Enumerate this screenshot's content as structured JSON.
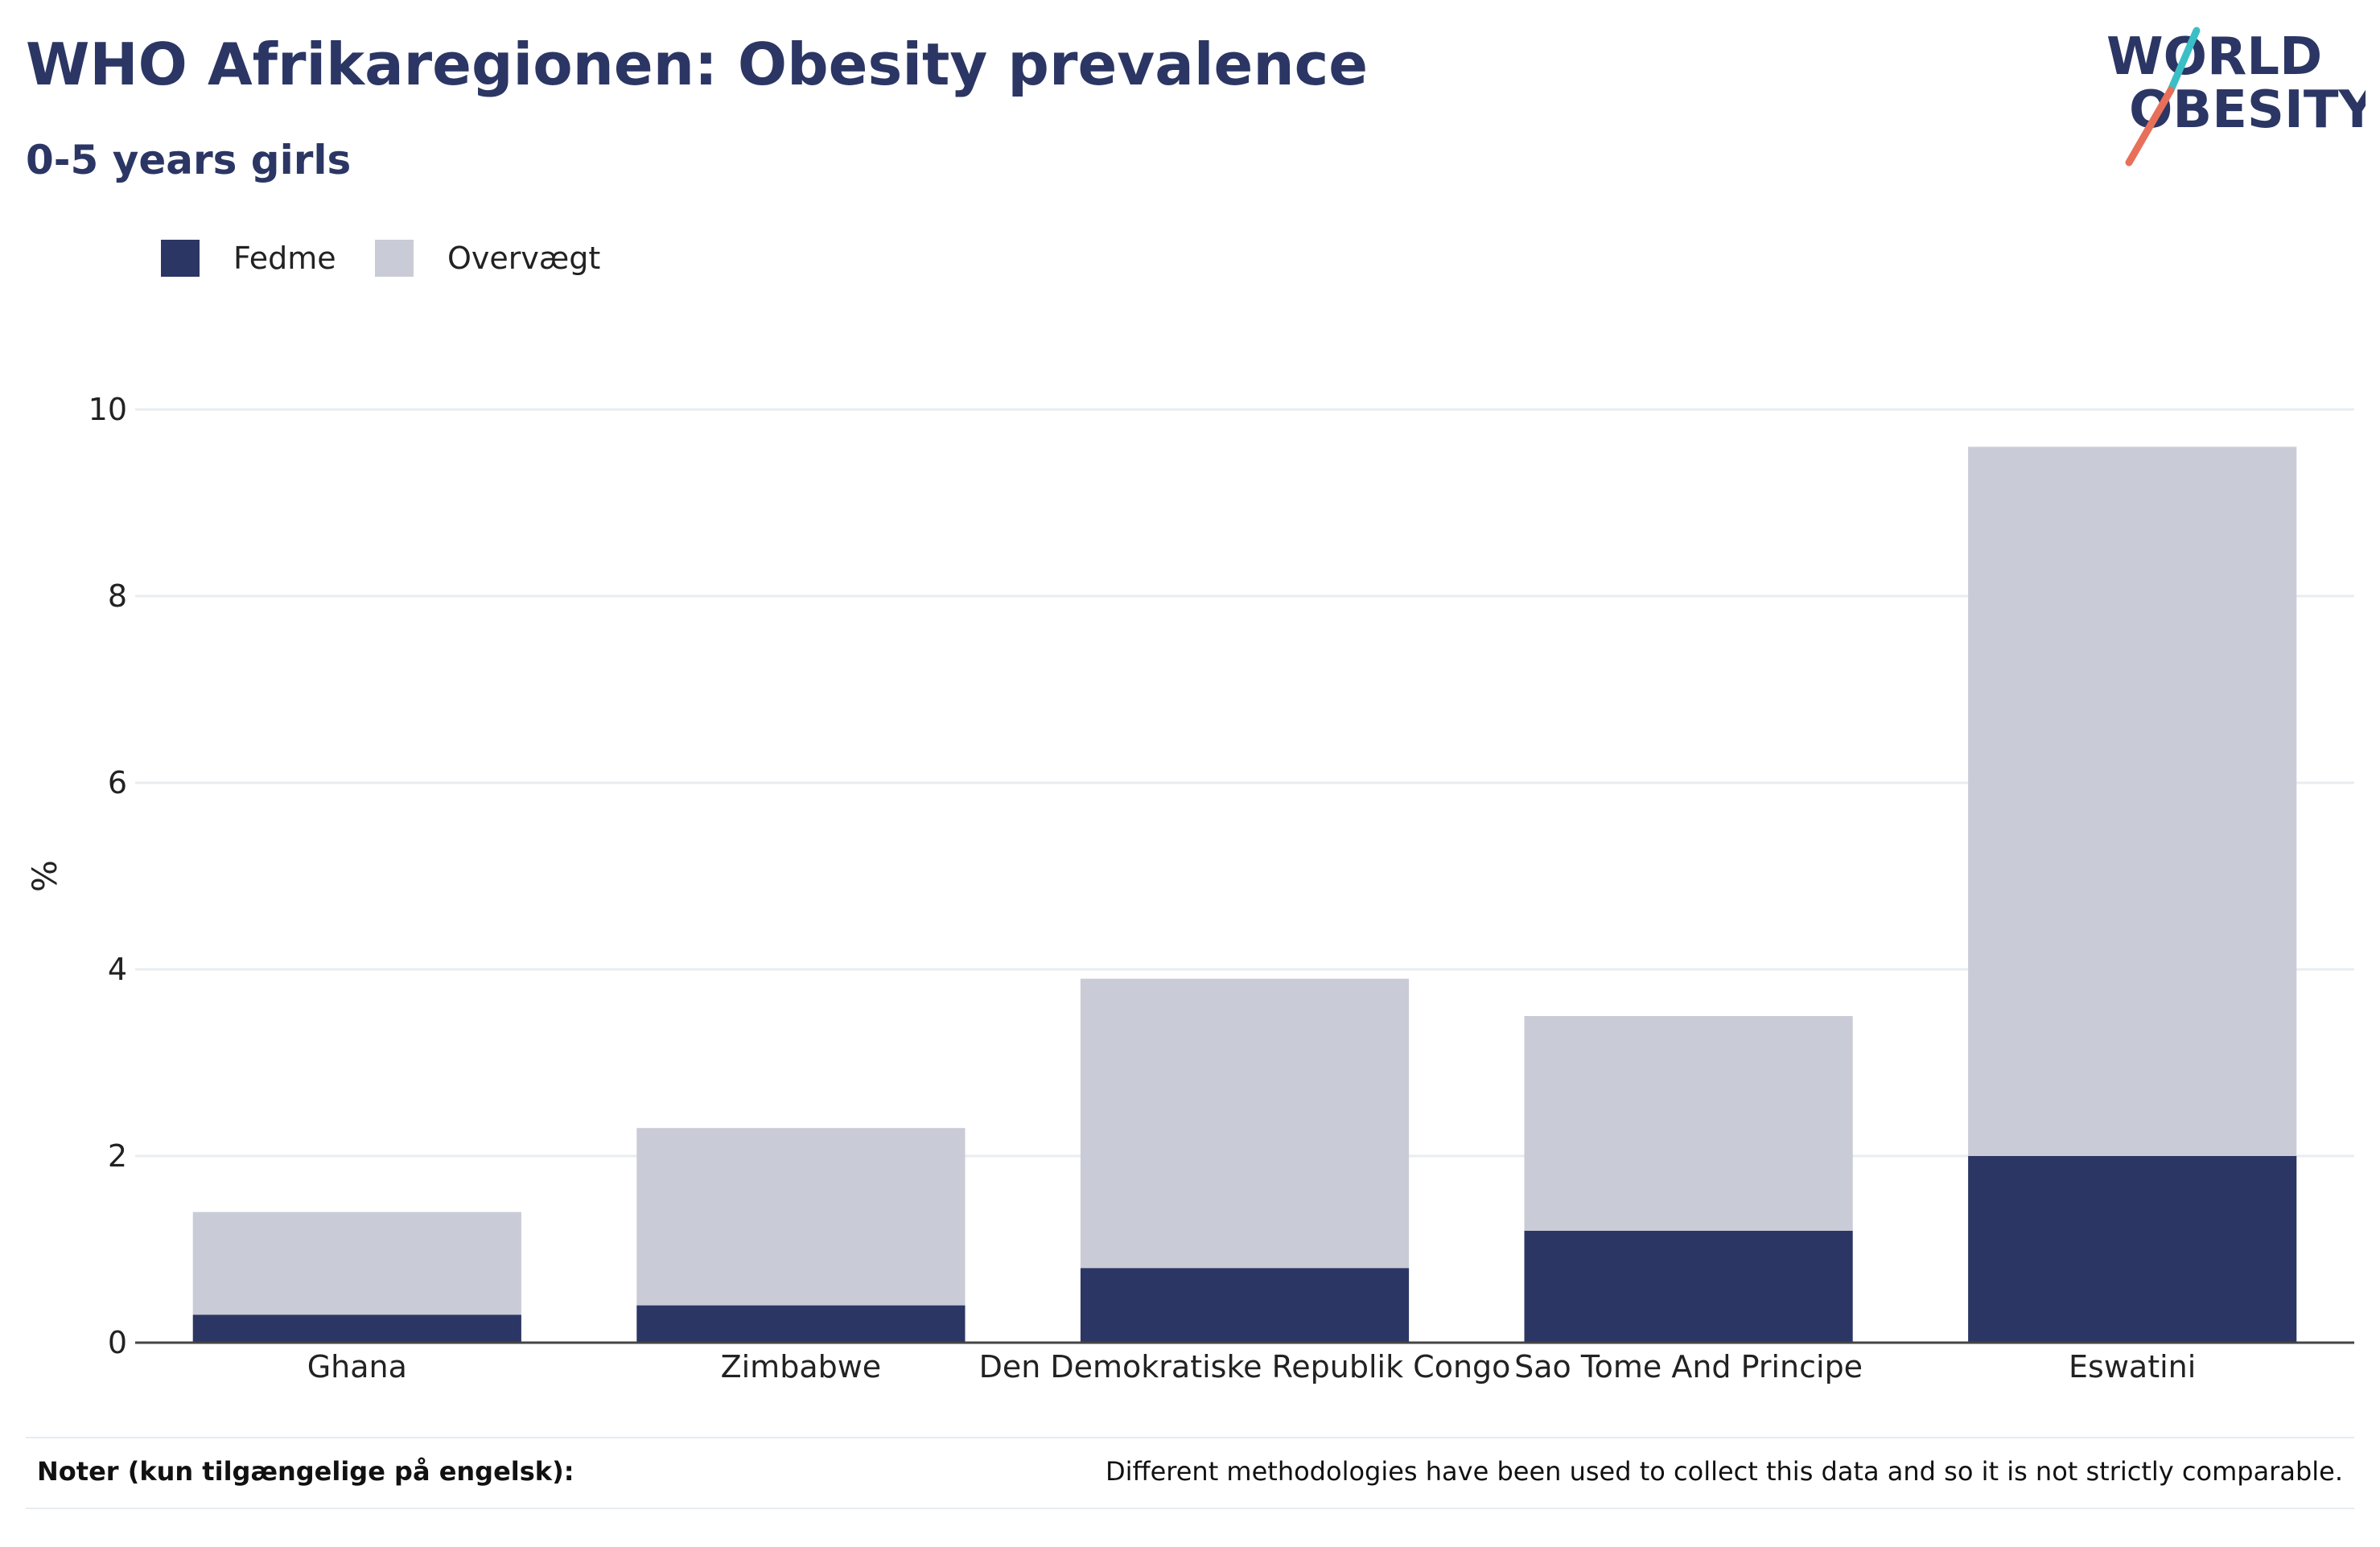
{
  "header": {
    "title": "WHO Afrikaregionen: Obesity prevalence",
    "subtitle": "0-5 years girls"
  },
  "logo": {
    "line1": "WORLD",
    "line2": "OBESITY",
    "colors": {
      "text": "#2b3664",
      "slash_top": "#3bbfc6",
      "slash_bottom": "#e8705a"
    }
  },
  "legend": {
    "items": [
      {
        "label": "Fedme",
        "color": "#2b3664"
      },
      {
        "label": "Overvægt",
        "color": "#c9cbd6"
      }
    ]
  },
  "chart_data": {
    "type": "bar",
    "stacked": true,
    "categories": [
      "Ghana",
      "Zimbabwe",
      "Den Demokratiske Republik Congo",
      "Sao Tome And Principe",
      "Eswatini"
    ],
    "series": [
      {
        "name": "Fedme",
        "color": "#2b3664",
        "values": [
          0.3,
          0.4,
          0.8,
          1.2,
          2.0
        ]
      },
      {
        "name": "Overvægt",
        "color": "#c9cbd6",
        "values": [
          1.1,
          1.9,
          3.1,
          2.3,
          7.6
        ]
      }
    ],
    "ylabel": "%",
    "xlabel": "",
    "ylim": [
      0,
      10
    ],
    "yticks": [
      0,
      2,
      4,
      6,
      8,
      10
    ],
    "grid": true
  },
  "footer": {
    "label": "Noter (kun tilgængelige på engelsk):",
    "note": "Different methodologies have been used to collect this data and so it is not strictly comparable."
  }
}
